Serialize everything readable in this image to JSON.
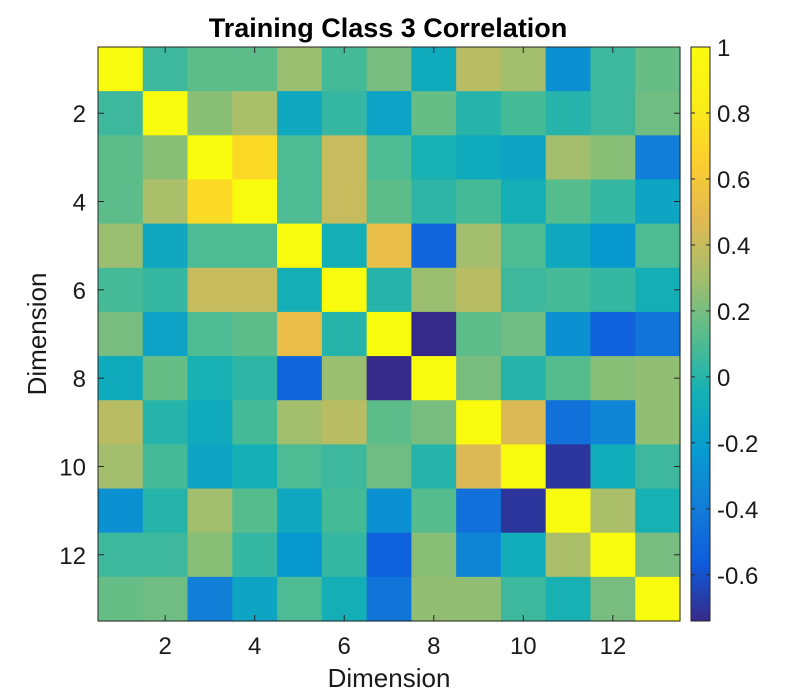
{
  "chart_data": {
    "type": "heatmap",
    "title": "Training Class 3 Correlation",
    "xlabel": "Dimension",
    "ylabel": "Dimension",
    "x_ticks": [
      2,
      4,
      6,
      8,
      10,
      12
    ],
    "y_ticks": [
      2,
      4,
      6,
      8,
      10,
      12
    ],
    "x_range": [
      0.5,
      13.5
    ],
    "y_range": [
      0.5,
      13.5
    ],
    "y_direction": "top-to-bottom",
    "rows": [
      1,
      2,
      3,
      4,
      5,
      6,
      7,
      8,
      9,
      10,
      11,
      12,
      13
    ],
    "columns": [
      1,
      2,
      3,
      4,
      5,
      6,
      7,
      8,
      9,
      10,
      11,
      12,
      13
    ],
    "values": [
      [
        1.0,
        0.06,
        0.14,
        0.14,
        0.28,
        0.08,
        0.2,
        -0.1,
        0.36,
        0.3,
        -0.28,
        0.06,
        0.16
      ],
      [
        0.06,
        1.0,
        0.24,
        0.32,
        -0.12,
        0.04,
        -0.16,
        0.16,
        0.0,
        0.08,
        0.0,
        0.06,
        0.18
      ],
      [
        0.14,
        0.24,
        1.0,
        0.72,
        0.1,
        0.4,
        0.1,
        -0.04,
        -0.1,
        -0.14,
        0.3,
        0.24,
        -0.38
      ],
      [
        0.14,
        0.32,
        0.72,
        1.0,
        0.1,
        0.4,
        0.14,
        0.02,
        0.08,
        -0.06,
        0.12,
        0.04,
        -0.14
      ],
      [
        0.28,
        -0.12,
        0.1,
        0.1,
        1.0,
        -0.06,
        0.52,
        -0.52,
        0.3,
        0.1,
        -0.12,
        -0.24,
        0.1
      ],
      [
        0.08,
        0.04,
        0.4,
        0.4,
        -0.06,
        1.0,
        0.0,
        0.28,
        0.36,
        0.06,
        0.08,
        0.04,
        -0.06
      ],
      [
        0.2,
        -0.16,
        0.1,
        0.14,
        0.52,
        0.0,
        1.0,
        -0.74,
        0.14,
        0.18,
        -0.28,
        -0.54,
        -0.44
      ],
      [
        -0.1,
        0.16,
        -0.04,
        0.02,
        -0.52,
        0.28,
        -0.74,
        1.0,
        0.2,
        0.0,
        0.12,
        0.24,
        0.26
      ],
      [
        0.36,
        0.0,
        -0.1,
        0.08,
        0.3,
        0.36,
        0.14,
        0.2,
        1.0,
        0.46,
        -0.46,
        -0.34,
        0.26
      ],
      [
        0.3,
        0.08,
        -0.14,
        -0.06,
        0.1,
        0.06,
        0.18,
        0.0,
        0.46,
        1.0,
        -0.7,
        -0.08,
        0.06
      ],
      [
        -0.28,
        0.0,
        0.3,
        0.12,
        -0.12,
        0.08,
        -0.28,
        0.12,
        -0.46,
        -0.7,
        1.0,
        0.32,
        -0.04
      ],
      [
        0.06,
        0.06,
        0.24,
        0.04,
        -0.24,
        0.04,
        -0.54,
        0.24,
        -0.34,
        -0.08,
        0.32,
        1.0,
        0.2
      ],
      [
        0.16,
        0.18,
        -0.38,
        -0.14,
        0.1,
        -0.06,
        -0.44,
        0.26,
        0.26,
        0.06,
        -0.04,
        0.2,
        1.0
      ]
    ],
    "colorbar": {
      "range": [
        -0.74,
        1.0
      ],
      "ticks": [
        1,
        0.8,
        0.6,
        0.4,
        0.2,
        0,
        -0.2,
        -0.4,
        -0.6
      ],
      "tick_labels": [
        "1",
        "0.8",
        "0.6",
        "0.4",
        "0.2",
        "0",
        "-0.2",
        "-0.4",
        "-0.6"
      ],
      "colormap": "parula",
      "placement": "right"
    },
    "grid": false
  }
}
